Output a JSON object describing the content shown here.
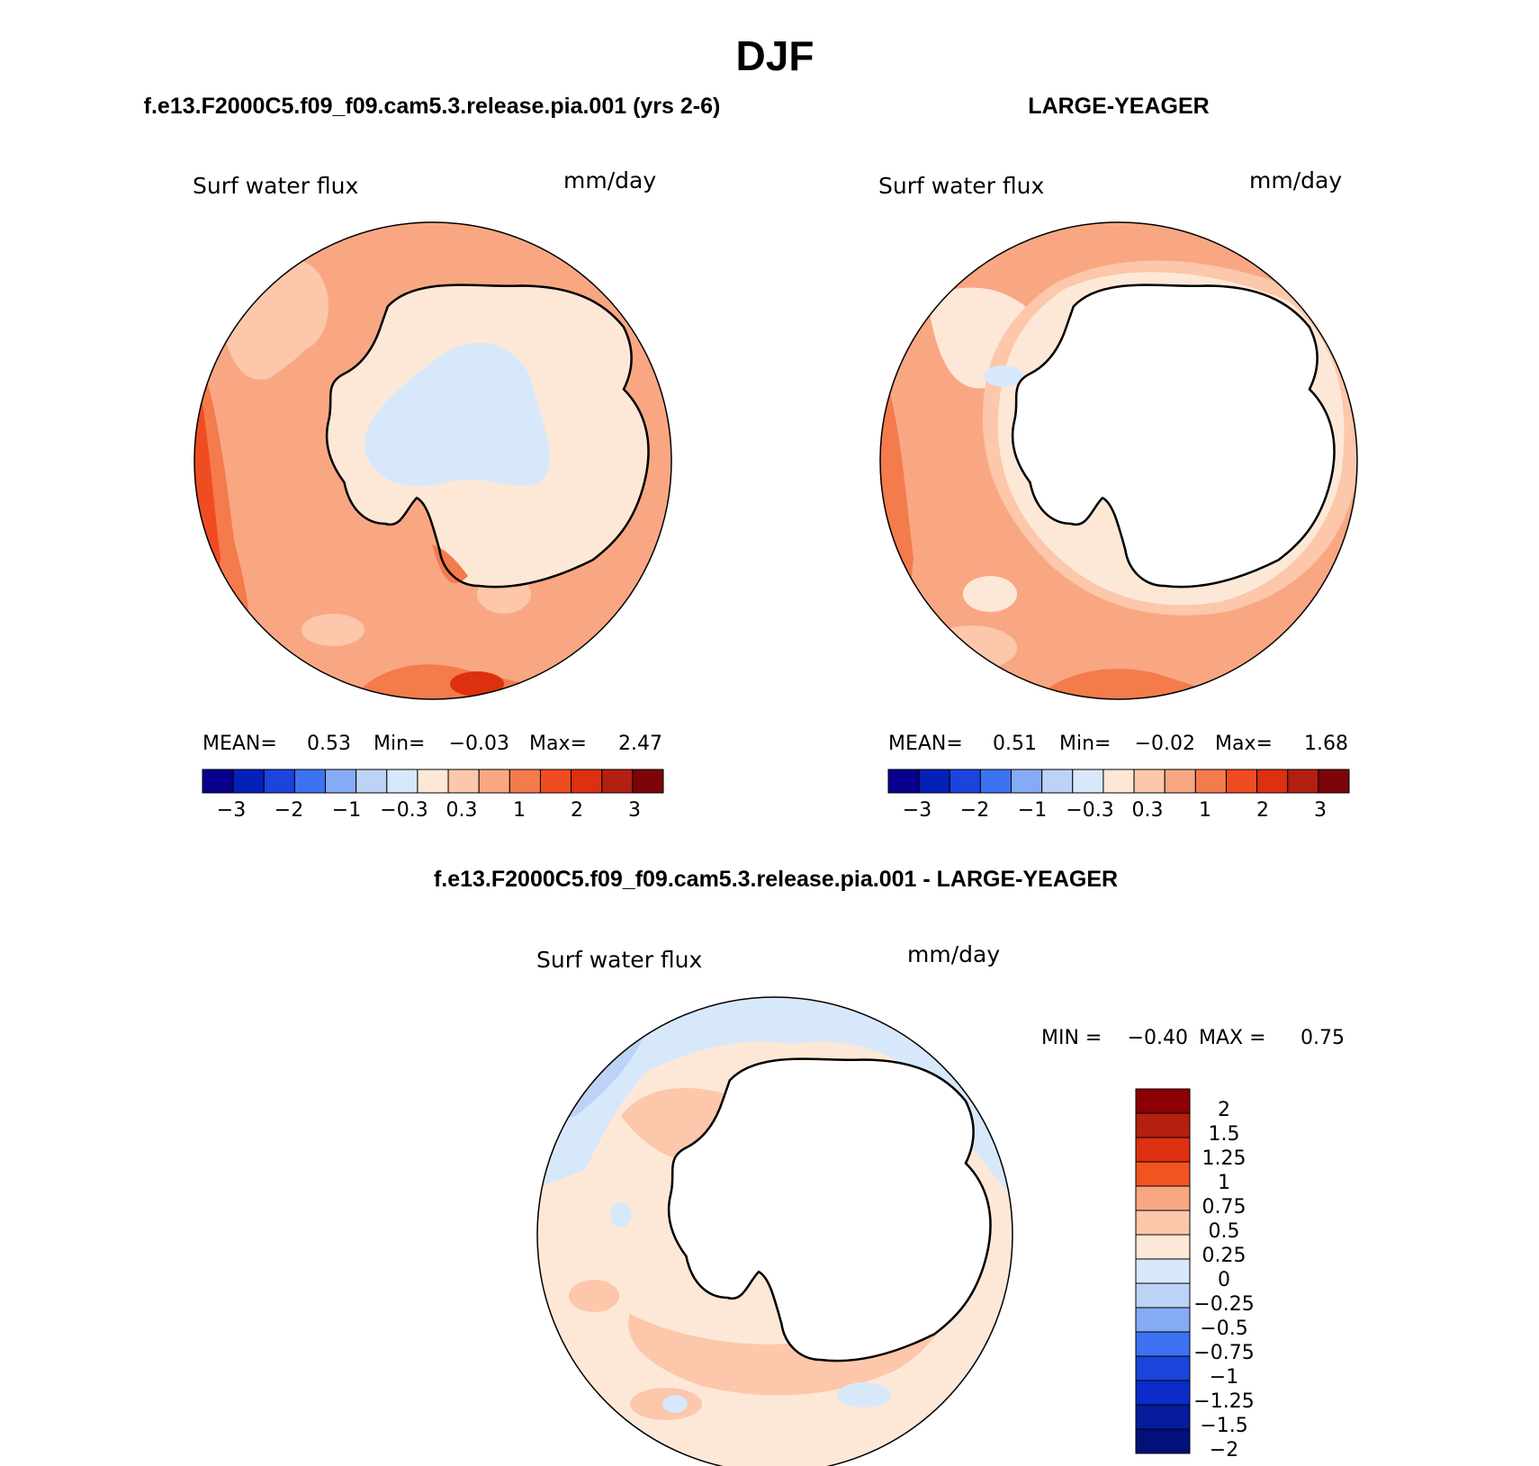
{
  "main_title": "DJF",
  "panels": [
    {
      "id": "model",
      "header": "f.e13.F2000C5.f09_f09.cam5.3.release.pia.001 (yrs 2-6)",
      "variable": "Surf water flux",
      "units": "mm/day",
      "stats": {
        "mean_label": "MEAN=",
        "mean": "0.53",
        "min_label": "Min=",
        "min": "−0.03",
        "max_label": "Max=",
        "max": "2.47"
      },
      "colorbar_labels": [
        "−3",
        "−2",
        "−1",
        "−0.3",
        "0.3",
        "1",
        "2",
        "3"
      ]
    },
    {
      "id": "obs",
      "header": "LARGE-YEAGER",
      "variable": "Surf water flux",
      "units": "mm/day",
      "stats": {
        "mean_label": "MEAN=",
        "mean": "0.51",
        "min_label": "Min=",
        "min": "−0.02",
        "max_label": "Max=",
        "max": "1.68"
      },
      "colorbar_labels": [
        "−3",
        "−2",
        "−1",
        "−0.3",
        "0.3",
        "1",
        "2",
        "3"
      ]
    },
    {
      "id": "diff",
      "header": "f.e13.F2000C5.f09_f09.cam5.3.release.pia.001 - LARGE-YEAGER",
      "variable": "Surf water flux",
      "units": "mm/day",
      "stats": {
        "min_label": "MIN =",
        "min": "−0.40",
        "max_label": "MAX =",
        "max": "0.75"
      },
      "colorbar_labels": [
        "2",
        "1.5",
        "1.25",
        "1",
        "0.75",
        "0.5",
        "0.25",
        "0",
        "−0.25",
        "−0.5",
        "−0.75",
        "−1",
        "−1.25",
        "−1.5",
        "−2"
      ]
    }
  ],
  "colors": {
    "top_scale": [
      "#08008c",
      "#0420b8",
      "#1a44dc",
      "#3d72f2",
      "#86abf5",
      "#bcd3f6",
      "#d7e8fa",
      "#fde8d7",
      "#fcc7aa",
      "#f9a783",
      "#f47b4c",
      "#f04c22",
      "#dc3010",
      "#b22010",
      "#7d0408"
    ],
    "diff_scale_top_to_bottom": [
      "#8c0005",
      "#b3200e",
      "#dc3010",
      "#f2541f",
      "#f9a783",
      "#fcc7aa",
      "#fde8d7",
      "#d7e8fa",
      "#bcd3f6",
      "#86abf5",
      "#3d72f2",
      "#1a44dc",
      "#0a2cc8",
      "#041c9c",
      "#02107a"
    ]
  }
}
